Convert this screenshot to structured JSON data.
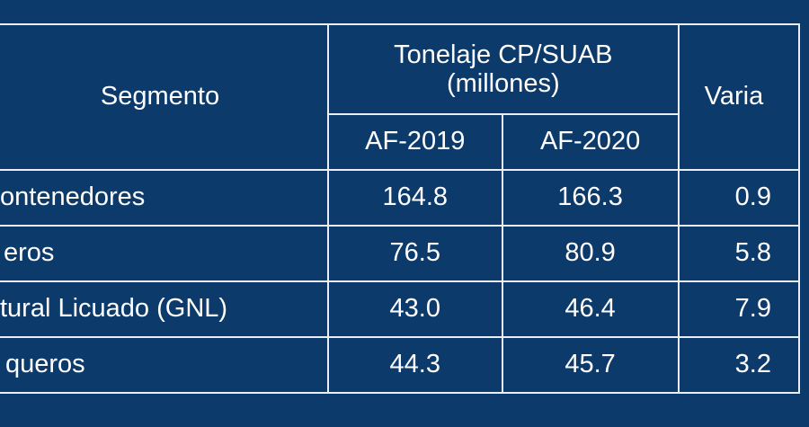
{
  "table": {
    "header": {
      "segment": "Segmento",
      "tonnage_group_line1": "Tonelaje CP/SUAB",
      "tonnage_group_line2": "(millones)",
      "year_1": "AF-2019",
      "year_2": "AF-2020",
      "variation": "Varia"
    },
    "rows": [
      {
        "segment": "ontenedores",
        "af2019": "164.8",
        "af2020": "166.3",
        "variation": "0.9"
      },
      {
        "segment": "eros",
        "af2019": "76.5",
        "af2020": "80.9",
        "variation": "5.8"
      },
      {
        "segment": "tural Licuado (GNL)",
        "af2019": "43.0",
        "af2020": "46.4",
        "variation": "7.9"
      },
      {
        "segment": "queros",
        "af2019": "44.3",
        "af2020": "45.7",
        "variation": "3.2"
      }
    ],
    "colors": {
      "background": "#0c3a6b",
      "grid": "#e9eef4",
      "text": "#ffffff"
    }
  }
}
